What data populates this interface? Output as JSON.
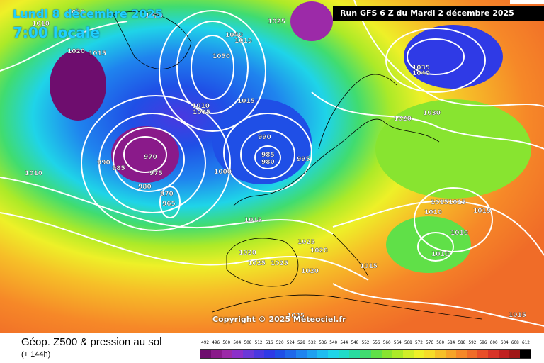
{
  "header": {
    "valid_date": "Lundi 8 décembre 2025",
    "valid_time": "7:00 locale",
    "run_info": "Run GFS 6 Z du Mardi 2 décembre 2025"
  },
  "map": {
    "copyright": "Copyright © 2025 Meteociel.fr",
    "pressure_labels": [
      "1020",
      "1020",
      "1010",
      "1025",
      "1020",
      "1015",
      "1040",
      "1050",
      "1035",
      "1040",
      "1015",
      "1010",
      "1005",
      "1015",
      "1020",
      "1030",
      "990",
      "985",
      "980",
      "995",
      "970",
      "990",
      "985",
      "975",
      "980",
      "970",
      "965",
      "1000",
      "1010",
      "1015",
      "1025",
      "1020",
      "1020",
      "1025",
      "1025",
      "1020",
      "1015",
      "1010",
      "1010",
      "1015",
      "1015",
      "1010",
      "1015",
      "1035",
      "1015"
    ],
    "contour_colors": {
      "isobar": "#ffffff",
      "coast": "#000000"
    }
  },
  "footer": {
    "title": "Géop. Z500 & pression au sol",
    "subtitle": "(+ 144h)"
  },
  "scale": {
    "labels": [
      "492",
      "496",
      "500",
      "504",
      "508",
      "512",
      "516",
      "520",
      "524",
      "528",
      "532",
      "536",
      "540",
      "544",
      "548",
      "552",
      "556",
      "560",
      "564",
      "568",
      "572",
      "576",
      "580",
      "584",
      "588",
      "592",
      "596",
      "600",
      "604",
      "608",
      "612"
    ],
    "colors": [
      "#6e0d6e",
      "#8a1a8a",
      "#9c2aa8",
      "#8c2fc9",
      "#6a38d8",
      "#4a38e0",
      "#2f3ae6",
      "#1f4fe6",
      "#1f68ea",
      "#1f84ee",
      "#1fa0f0",
      "#1fbcf0",
      "#1fd4e8",
      "#20dcc8",
      "#28dca0",
      "#40dc70",
      "#60e048",
      "#88e430",
      "#acea28",
      "#d0ee28",
      "#eef028",
      "#f6dc28",
      "#f6c028",
      "#f6a428",
      "#f68828",
      "#f06c28",
      "#e84e28",
      "#d83428",
      "#c02020",
      "#a01818",
      "#000000"
    ]
  }
}
